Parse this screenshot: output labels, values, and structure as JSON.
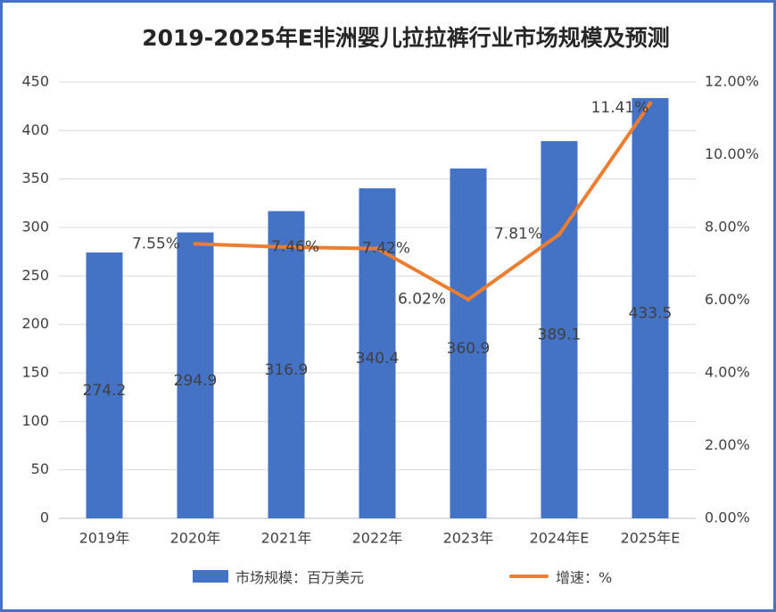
{
  "chart_data": {
    "type": "bar",
    "title": "2019-2025年E非洲婴儿拉拉裤行业市场规模及预测",
    "categories": [
      "2019年",
      "2020年",
      "2021年",
      "2022年",
      "2023年",
      "2024年E",
      "2025年E"
    ],
    "series": [
      {
        "name": "市场规模：百万美元",
        "type": "bar",
        "axis": "left",
        "values": [
          274.2,
          294.9,
          316.9,
          340.4,
          360.9,
          389.1,
          433.5
        ],
        "labels": [
          "274.2",
          "294.9",
          "316.9",
          "340.4",
          "360.9",
          "389.1",
          "433.5"
        ],
        "color": "#4472c4"
      },
      {
        "name": "增速：%",
        "type": "line",
        "axis": "right",
        "values": [
          null,
          7.55,
          7.46,
          7.42,
          6.02,
          7.81,
          11.41
        ],
        "labels": [
          "",
          "7.55%",
          "7.46%",
          "7.42%",
          "6.02%",
          "7.81%",
          "11.41%"
        ],
        "color": "#ed7d31"
      }
    ],
    "y_left": {
      "min": 0,
      "max": 450,
      "ticks": [
        "0",
        "50",
        "100",
        "150",
        "200",
        "250",
        "300",
        "350",
        "400",
        "450"
      ]
    },
    "y_right": {
      "min": 0,
      "max": 12,
      "ticks": [
        "0.00%",
        "2.00%",
        "4.00%",
        "6.00%",
        "8.00%",
        "10.00%",
        "12.00%"
      ]
    },
    "grid": true,
    "legend_position": "bottom"
  }
}
